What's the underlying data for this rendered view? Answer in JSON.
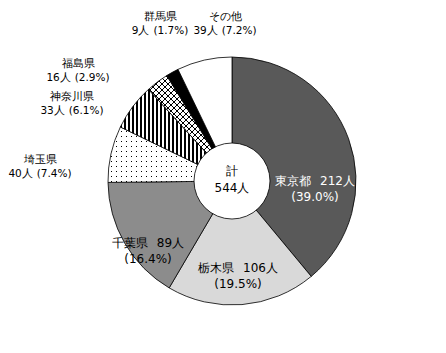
{
  "chart_data": {
    "type": "pie",
    "categories": [
      "東京都",
      "栃木県",
      "千葉県",
      "埼玉県",
      "神奈川県",
      "福島県",
      "群馬県",
      "その他"
    ],
    "values": [
      212,
      106,
      89,
      40,
      33,
      16,
      9,
      39
    ],
    "value_labels": [
      "212人",
      "106人",
      "89人",
      "40人",
      "33人",
      "16人",
      "9人",
      "39人"
    ],
    "percents": [
      39.0,
      19.5,
      16.4,
      7.4,
      6.1,
      2.9,
      1.7,
      7.2
    ],
    "percent_labels": [
      "(39.0%)",
      "(19.5%)",
      "(16.4%)",
      "(7.4%)",
      "(6.1%)",
      "(2.9%)",
      "(1.7%)",
      "(7.2%)"
    ],
    "colors": [
      "#595959",
      "#d9d9d9",
      "#8c8c8c",
      "#ffffff",
      "#ffffff",
      "#ffffff",
      "#000000",
      "#ffffff"
    ],
    "center_title": "計",
    "total": 544,
    "total_label": "544人",
    "data_labels": true
  }
}
